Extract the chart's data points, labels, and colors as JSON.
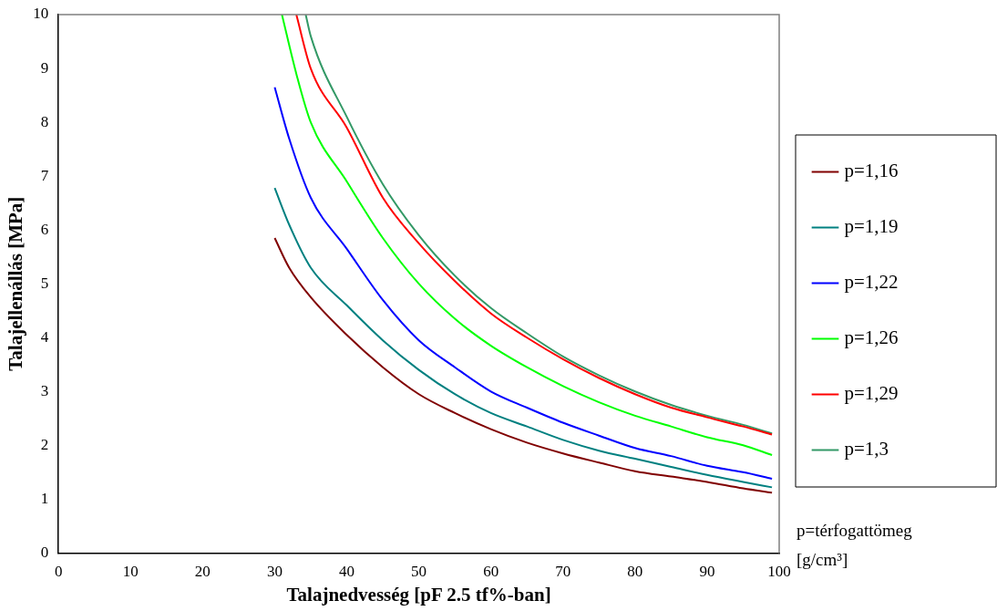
{
  "chart_data": {
    "type": "line",
    "xlabel": "Talajnedvesség [pF 2.5 tf%-ban]",
    "ylabel": "Talajellenállás [MPa]",
    "xlim": [
      0,
      100
    ],
    "xticks": [
      0,
      10,
      20,
      30,
      40,
      50,
      60,
      70,
      80,
      90,
      100
    ],
    "ylim": [
      0,
      10
    ],
    "yticks": [
      0,
      1,
      2,
      3,
      4,
      5,
      6,
      7,
      8,
      9,
      10
    ],
    "grid": false,
    "legend": "right",
    "marker": "none",
    "line_style": "solid",
    "annotations": [
      "p=térfogattömeg [g/cm³]"
    ],
    "series": [
      {
        "name": "p=1,16",
        "color": "#800000",
        "x": [
          30,
          32,
          35,
          40,
          45,
          50,
          55,
          60,
          65,
          70,
          75,
          80,
          85,
          90,
          95,
          99
        ],
        "values": [
          5.85,
          5.3,
          4.75,
          4.05,
          3.45,
          2.95,
          2.6,
          2.3,
          2.05,
          1.85,
          1.68,
          1.52,
          1.42,
          1.32,
          1.2,
          1.12
        ]
      },
      {
        "name": "p=1,19",
        "color": "#008080",
        "x": [
          30,
          32,
          35,
          40,
          45,
          50,
          55,
          60,
          65,
          70,
          75,
          80,
          85,
          90,
          95,
          99
        ],
        "values": [
          6.78,
          6.1,
          5.3,
          4.6,
          3.95,
          3.4,
          2.95,
          2.6,
          2.35,
          2.1,
          1.9,
          1.75,
          1.6,
          1.45,
          1.32,
          1.22
        ]
      },
      {
        "name": "p=1,22",
        "color": "#0000ff",
        "x": [
          30,
          32,
          35,
          40,
          45,
          50,
          55,
          60,
          65,
          70,
          75,
          80,
          85,
          90,
          95,
          99
        ],
        "values": [
          8.65,
          7.7,
          6.6,
          5.65,
          4.7,
          3.95,
          3.45,
          3.0,
          2.7,
          2.42,
          2.18,
          1.95,
          1.8,
          1.62,
          1.5,
          1.38
        ]
      },
      {
        "name": "p=1,26",
        "color": "#00ff00",
        "x": [
          31,
          33,
          35,
          40,
          45,
          50,
          55,
          60,
          65,
          70,
          75,
          80,
          85,
          90,
          95,
          99
        ],
        "values": [
          10,
          8.9,
          8.0,
          6.9,
          5.85,
          5.0,
          4.35,
          3.85,
          3.45,
          3.1,
          2.8,
          2.55,
          2.35,
          2.15,
          2.0,
          1.82
        ]
      },
      {
        "name": "p=1,29",
        "color": "#ff0000",
        "x": [
          33,
          35,
          40,
          45,
          50,
          55,
          60,
          65,
          70,
          75,
          80,
          85,
          90,
          95,
          99
        ],
        "values": [
          10,
          9.0,
          7.9,
          6.6,
          5.75,
          5.05,
          4.45,
          4.0,
          3.6,
          3.25,
          2.95,
          2.7,
          2.52,
          2.35,
          2.2
        ]
      },
      {
        "name": "p=1,3",
        "color": "#339966",
        "x": [
          34.3,
          35,
          40,
          45,
          50,
          55,
          60,
          65,
          70,
          75,
          80,
          85,
          90,
          95,
          99
        ],
        "values": [
          10,
          9.6,
          8.1,
          6.85,
          5.9,
          5.15,
          4.55,
          4.08,
          3.65,
          3.3,
          3.0,
          2.75,
          2.55,
          2.38,
          2.22
        ]
      }
    ]
  }
}
